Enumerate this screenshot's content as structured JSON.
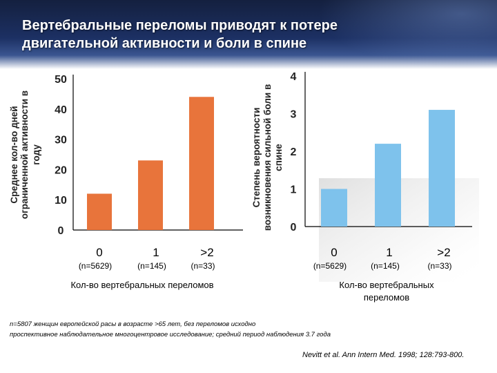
{
  "slide": {
    "title_line1": "Вертебральные переломы приводят к потере",
    "title_line2": "двигательной активности и боли в спине"
  },
  "chart_data": [
    {
      "type": "bar",
      "title": "",
      "xlabel": "Кол-во вертебральных переломов",
      "ylabel_lines": [
        "Среднее кол-во дней",
        "ограниченной активности в",
        "году"
      ],
      "categories": [
        "0",
        "1",
        ">2"
      ],
      "sublabels": [
        "(n=5629)",
        "(n=145)",
        "(n=33)"
      ],
      "values": [
        12,
        23,
        44
      ],
      "ylim": [
        0,
        50
      ],
      "yticks": [
        "0",
        "10",
        "20",
        "30",
        "40",
        "50"
      ],
      "color": "#e8743b"
    },
    {
      "type": "bar",
      "title": "",
      "xlabel_lines": [
        "Кол-во вертебральных",
        "переломов"
      ],
      "ylabel_lines": [
        "Степень вероятности",
        "возникновения сильной боли в",
        "спине"
      ],
      "categories": [
        "0",
        "1",
        ">2"
      ],
      "sublabels": [
        "(n=5629)",
        "(n=145)",
        "(n=33)"
      ],
      "values": [
        1.0,
        2.2,
        3.1
      ],
      "ylim": [
        0,
        4
      ],
      "yticks": [
        "0",
        "1",
        "2",
        "3",
        "4"
      ],
      "color": "#7ec2ec"
    }
  ],
  "footnote": {
    "line1": "n=5807 женщин европейской расы в возрасте >65 лет, без переломов исходно",
    "line2": "проспективное наблюдательное многоцентровое исследование; средний период наблюдения 3.7 года"
  },
  "reference": "Nevitt et al. Ann Intern Med. 1998; 128:793-800."
}
